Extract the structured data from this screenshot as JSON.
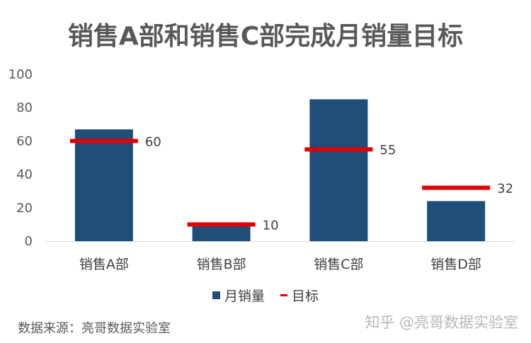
{
  "chart_data": {
    "type": "bar",
    "title": "销售A部和销售C部完成月销量目标",
    "categories": [
      "销售A部",
      "销售B部",
      "销售C部",
      "销售D部"
    ],
    "series": [
      {
        "name": "月销量",
        "type": "bar",
        "color": "#1f4e79",
        "values": [
          67,
          10,
          85,
          24
        ]
      },
      {
        "name": "目标",
        "type": "marker-line",
        "color": "#e00000",
        "values": [
          60,
          10,
          55,
          32
        ]
      }
    ],
    "data_labels": [
      "60",
      "10",
      "55",
      "32"
    ],
    "ylim": [
      0,
      100
    ],
    "yticks": [
      0,
      20,
      40,
      60,
      80,
      100
    ],
    "grid": false,
    "legend_position": "bottom"
  },
  "source_note": "数据来源：亮哥数据实验室",
  "watermark": "知乎 @亮哥数据实验室"
}
